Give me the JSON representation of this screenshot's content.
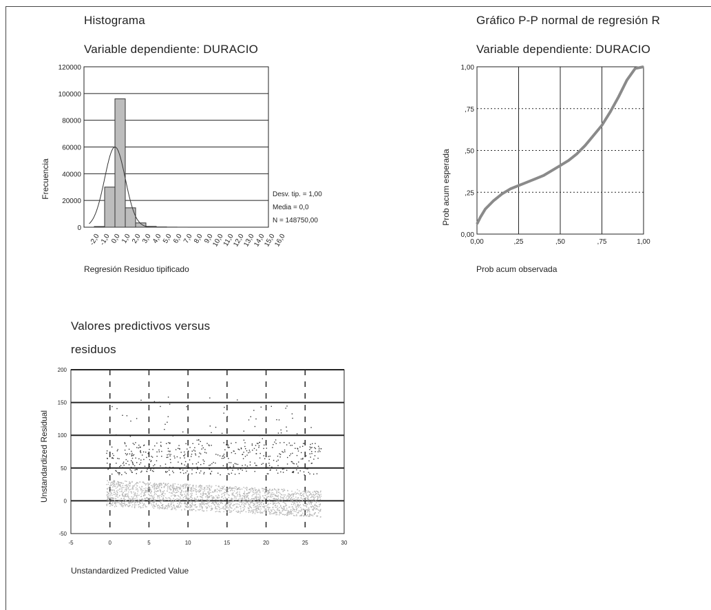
{
  "histogram": {
    "title": "Histograma",
    "subtitle": "Variable dependiente: DURACIO",
    "ylabel": "Frecuencia",
    "xlabel": "Regresión Residuo tipificado",
    "stats": [
      "Desv. tip. = 1,00",
      "Media = 0,0",
      "N = 148750,00"
    ]
  },
  "pp": {
    "title": "Gráfico P-P normal de regresión R",
    "subtitle": "Variable dependiente: DURACIO",
    "ylabel": "Prob acum esperada",
    "xlabel": "Prob acum observada"
  },
  "scatter": {
    "title_line1": "Valores predictivos versus",
    "title_line2": "residuos",
    "ylabel": "Unstandardized Residual",
    "xlabel": "Unstandardized Predicted Value"
  },
  "chart_data": [
    {
      "type": "bar",
      "title": "Histograma",
      "subtitle": "Variable dependiente: DURACIO",
      "xlabel": "Regresión Residuo tipificado",
      "ylabel": "Frecuencia",
      "ylim": [
        0,
        120000
      ],
      "yticks": [
        "0",
        "20000",
        "40000",
        "60000",
        "80000",
        "100000",
        "120000"
      ],
      "categories": [
        "-2,0",
        "-1,0",
        "0,0",
        "1,0",
        "2,0",
        "3,0",
        "4,0",
        "5,0",
        "6,0",
        "7,0",
        "8,0",
        "9,0",
        "10,0",
        "11,0",
        "12,0",
        "13,0",
        "14,0",
        "15,0",
        "16,0"
      ],
      "values": [
        500,
        30000,
        96000,
        14500,
        3200,
        600,
        200,
        80,
        30,
        0,
        0,
        0,
        0,
        0,
        0,
        0,
        0,
        0,
        0
      ],
      "normal_curve": {
        "mean": 0.0,
        "sd": 1.0,
        "n": 148750
      },
      "grid": "horizontal"
    },
    {
      "type": "line",
      "title": "Gráfico P-P normal de regresión R",
      "subtitle": "Variable dependiente: DURACIO",
      "xlabel": "Prob acum observada",
      "ylabel": "Prob acum esperada",
      "xlim": [
        0,
        1
      ],
      "ylim": [
        0,
        1
      ],
      "xticks": [
        "0,00",
        ",25",
        ",50",
        ",75",
        "1,00"
      ],
      "yticks": [
        "0,00",
        ",25",
        ",50",
        ",75",
        "1,00"
      ],
      "x": [
        0.0,
        0.02,
        0.05,
        0.1,
        0.15,
        0.2,
        0.25,
        0.3,
        0.35,
        0.4,
        0.45,
        0.5,
        0.55,
        0.6,
        0.65,
        0.7,
        0.75,
        0.8,
        0.85,
        0.9,
        0.95,
        1.0
      ],
      "y": [
        0.06,
        0.1,
        0.15,
        0.2,
        0.24,
        0.27,
        0.29,
        0.31,
        0.33,
        0.35,
        0.38,
        0.41,
        0.44,
        0.48,
        0.53,
        0.59,
        0.65,
        0.73,
        0.82,
        0.92,
        0.99,
        1.0
      ]
    },
    {
      "type": "scatter",
      "title": "Valores predictivos versus residuos",
      "xlabel": "Unstandardized Predicted Value",
      "ylabel": "Unstandardized Residual",
      "xlim": [
        -5,
        30
      ],
      "ylim": [
        -50,
        200
      ],
      "xticks": [
        "-5",
        "0",
        "5",
        "10",
        "15",
        "20",
        "25",
        "30"
      ],
      "yticks": [
        "-50",
        "0",
        "50",
        "100",
        "150",
        "200"
      ]
    }
  ]
}
